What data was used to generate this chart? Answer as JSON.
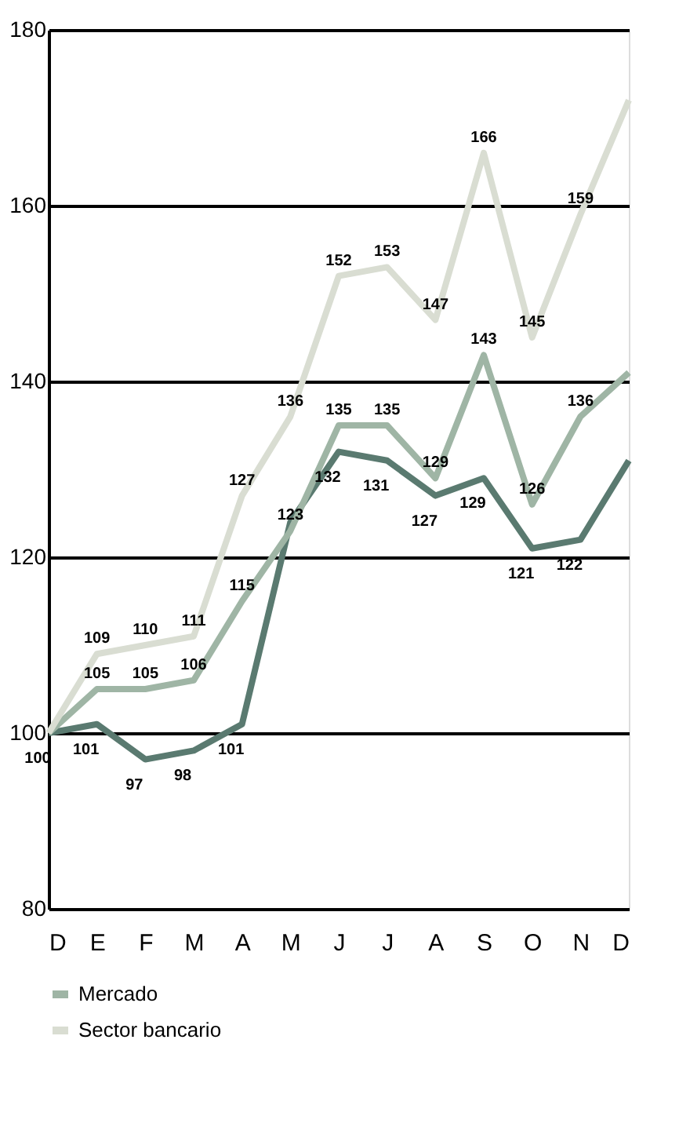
{
  "chart_data": {
    "type": "line",
    "categories": [
      "D",
      "E",
      "F",
      "M",
      "A",
      "M",
      "J",
      "J",
      "A",
      "S",
      "O",
      "N",
      "D"
    ],
    "series": [
      {
        "color": "#5a7a70",
        "values": [
          100,
          101,
          97,
          98,
          101,
          124,
          132,
          131,
          127,
          129,
          121,
          122,
          131
        ],
        "value_labels": [
          "100",
          "101",
          "97",
          "98",
          "101",
          null,
          "132",
          "131",
          "127",
          "129",
          "121",
          "122",
          null
        ]
      },
      {
        "name": "Mercado",
        "color": "#9fb5a5",
        "values": [
          100,
          105,
          105,
          106,
          115,
          123,
          135,
          135,
          129,
          143,
          126,
          136,
          141
        ],
        "value_labels": [
          null,
          "105",
          "105",
          "106",
          "115",
          "123",
          "135",
          "135",
          "129",
          "143",
          "126",
          "136",
          null
        ]
      },
      {
        "name": "Sector bancario",
        "color": "#d9ddd2",
        "values": [
          100,
          109,
          110,
          111,
          127,
          136,
          152,
          153,
          147,
          166,
          145,
          159,
          172
        ],
        "value_labels": [
          null,
          "109",
          "110",
          "111",
          "127",
          "136",
          "152",
          "153",
          "147",
          "166",
          "145",
          "159",
          null
        ]
      }
    ],
    "ylim": [
      80,
      180
    ],
    "yticks": [
      80,
      100,
      120,
      140,
      160,
      180
    ],
    "grid": "y",
    "legend": "bottom",
    "marker": "none",
    "line_style": "solid"
  }
}
